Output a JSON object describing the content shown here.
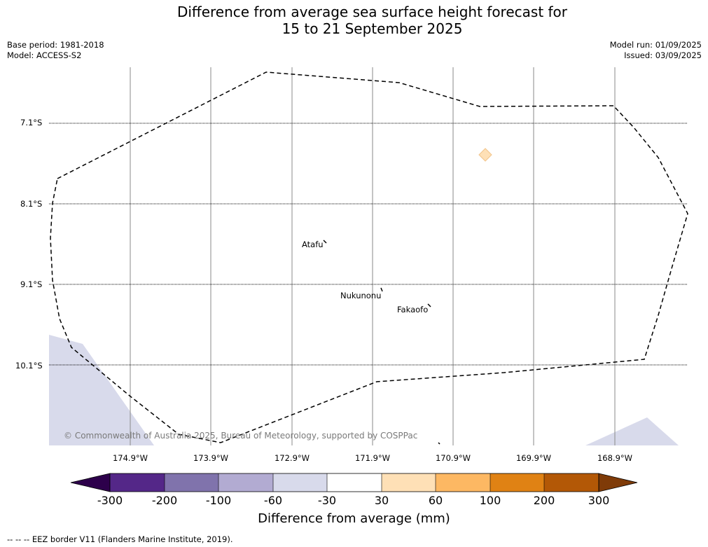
{
  "title_line1": "Difference from average sea surface height forecast for",
  "title_line2": "15 to 21 September 2025",
  "base_period": "Base period: 1981-2018",
  "model": "Model: ACCESS-S2",
  "model_run": "Model run: 01/09/2025",
  "issued": "Issued: 03/09/2025",
  "latitude_labels": [
    "7.1°S",
    "8.1°S",
    "9.1°S",
    "10.1°S"
  ],
  "longitude_labels": [
    "174.9°W",
    "173.9°W",
    "172.9°W",
    "171.9°W",
    "170.9°W",
    "169.9°W",
    "168.9°W"
  ],
  "places": [
    "Atafu",
    "Nukunonu",
    "Fakaofo"
  ],
  "copyright": "© Commonwealth of Australia 2025, Bureau of Meteorology, supported by COSPPac",
  "colorbar": {
    "ticks": [
      "-300",
      "-200",
      "-100",
      "-60",
      "-30",
      "30",
      "60",
      "100",
      "200",
      "300"
    ],
    "colors": [
      "#2d004b",
      "#542788",
      "#8073ac",
      "#b2abd2",
      "#d8daeb",
      "#ffffff",
      "#fee0b6",
      "#fdb863",
      "#e08214",
      "#b35806",
      "#7f3b08"
    ],
    "label": "Difference from average (mm)"
  },
  "footnote": "--  --  -- EEZ border V11 (Flanders Marine Institute, 2019)."
}
